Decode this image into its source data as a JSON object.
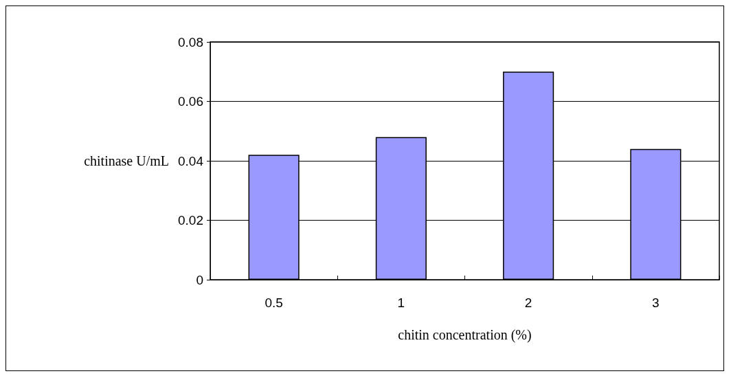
{
  "chart_data": {
    "type": "bar",
    "xlabel": "chitin concentration (%)",
    "ylabel": "chitinase U/mL",
    "categories": [
      "0.5",
      "1",
      "2",
      "3"
    ],
    "values": [
      0.042,
      0.048,
      0.07,
      0.044
    ],
    "color": "#9999ff",
    "ylim": [
      0,
      0.08
    ],
    "yticks": [
      0,
      0.02,
      0.04,
      0.06,
      0.08
    ],
    "grid": "y"
  }
}
